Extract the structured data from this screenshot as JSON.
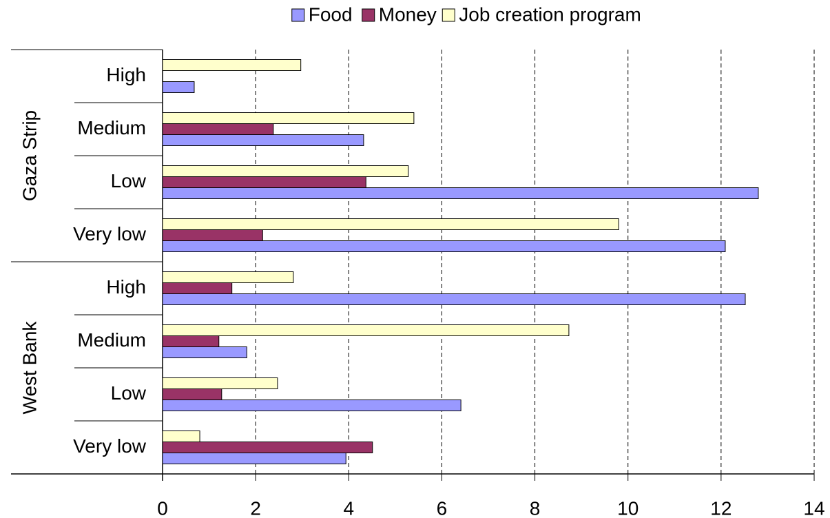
{
  "chart_data": {
    "type": "hbar",
    "groups": [
      {
        "name": "Gaza Strip",
        "categories": [
          "High",
          "Medium",
          "Low",
          "Very low"
        ]
      },
      {
        "name": "West Bank",
        "categories": [
          "High",
          "Medium",
          "Low",
          "Very low"
        ]
      }
    ],
    "series": [
      {
        "name": "Food",
        "color": "#9999ff",
        "values": [
          0.68,
          4.32,
          12.8,
          12.09,
          12.52,
          1.81,
          6.41,
          3.94
        ]
      },
      {
        "name": "Money",
        "color": "#993366",
        "values": [
          null,
          2.38,
          4.37,
          2.15,
          1.49,
          1.21,
          1.27,
          4.51
        ]
      },
      {
        "name": "Job creation program",
        "color": "#ffffcc",
        "values": [
          2.97,
          5.4,
          5.28,
          9.8,
          2.81,
          8.73,
          2.47,
          0.8
        ]
      }
    ],
    "xlim": [
      0,
      14
    ],
    "xticks": [
      0,
      2,
      4,
      6,
      8,
      10,
      12,
      14
    ],
    "grid": true,
    "legend": "top"
  }
}
